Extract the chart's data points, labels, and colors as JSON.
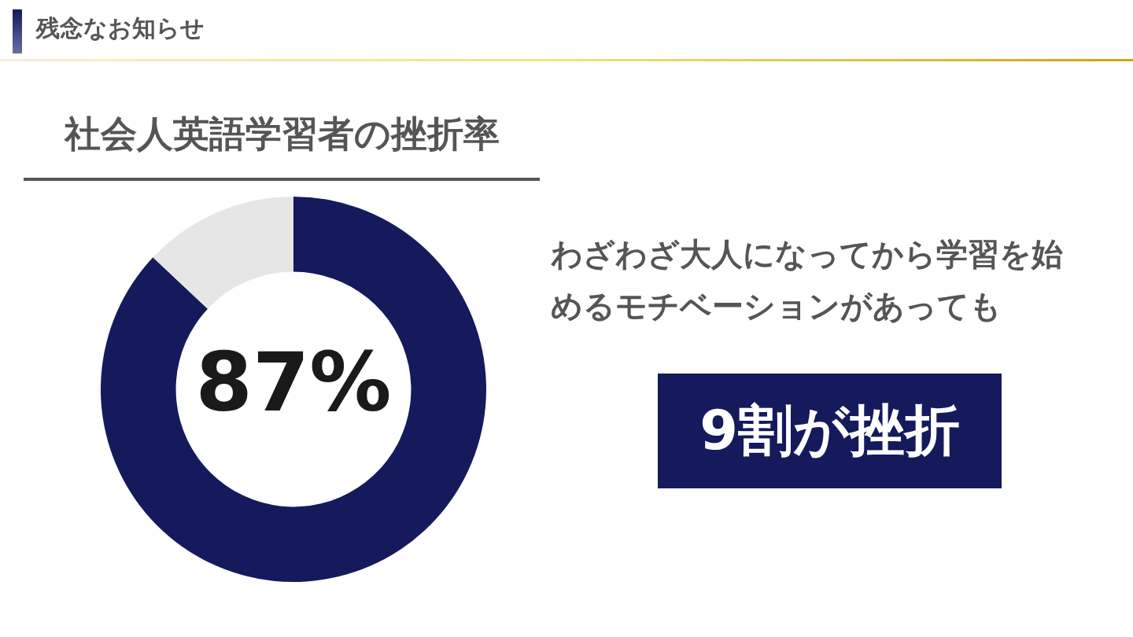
{
  "chart_data": {
    "type": "donut",
    "subtitle": "残念なお知らせ",
    "title": "社会人英語学習者の挫折率",
    "categories": [
      null,
      null
    ],
    "values": [
      87,
      13
    ],
    "colors": [
      "#141a5c",
      "#e6e6e6"
    ],
    "value_labels": [
      "87%",
      null
    ],
    "annotations": [
      "わざわざ大人になってから学習を始めるモチベーションがあっても",
      "9割が挫折"
    ]
  }
}
